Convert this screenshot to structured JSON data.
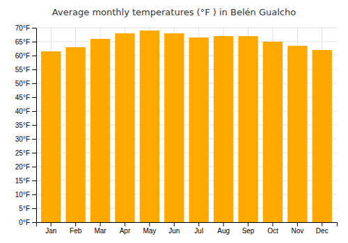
{
  "chart_data": {
    "type": "bar",
    "title": "Average monthly temperatures (°F ) in Belén Gualcho",
    "categories": [
      "Jan",
      "Feb",
      "Mar",
      "Apr",
      "May",
      "Jun",
      "Jul",
      "Aug",
      "Sep",
      "Oct",
      "Nov",
      "Dec"
    ],
    "values": [
      61.5,
      63.0,
      66.0,
      68.0,
      69.0,
      68.0,
      66.5,
      67.0,
      67.0,
      65.0,
      63.5,
      62.0
    ],
    "color": "#FFA800",
    "ylim": [
      0,
      70
    ],
    "yticks": [
      {
        "value": 0,
        "label": "0°F"
      },
      {
        "value": 5,
        "label": "5°F"
      },
      {
        "value": 10,
        "label": "10°F"
      },
      {
        "value": 15,
        "label": "15°F"
      },
      {
        "value": 20,
        "label": "20°F"
      },
      {
        "value": 25,
        "label": "25°F"
      },
      {
        "value": 30,
        "label": "30°F"
      },
      {
        "value": 35,
        "label": "35°F"
      },
      {
        "value": 40,
        "label": "40°F"
      },
      {
        "value": 45,
        "label": "45°F"
      },
      {
        "value": 50,
        "label": "50°F"
      },
      {
        "value": 55,
        "label": "55°F"
      },
      {
        "value": 60,
        "label": "60°F"
      },
      {
        "value": 65,
        "label": "65°F"
      },
      {
        "value": 70,
        "label": "70°F"
      }
    ],
    "grid": true
  }
}
